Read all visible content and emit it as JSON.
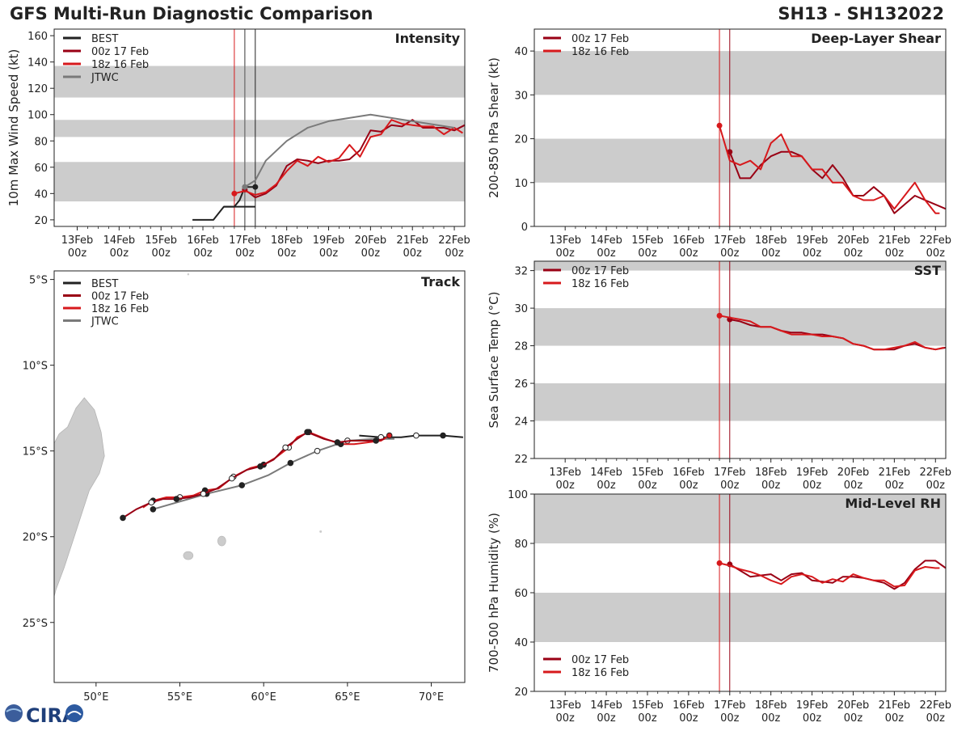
{
  "header": {
    "title": "GFS Multi-Run Diagnostic Comparison",
    "storm_id": "SH13 - SH132022"
  },
  "logo": {
    "text": "CIRA"
  },
  "time_axis": {
    "ticks": [
      [
        "13Feb",
        "00z"
      ],
      [
        "14Feb",
        "00z"
      ],
      [
        "15Feb",
        "00z"
      ],
      [
        "16Feb",
        "00z"
      ],
      [
        "17Feb",
        "00z"
      ],
      [
        "18Feb",
        "00z"
      ],
      [
        "19Feb",
        "00z"
      ],
      [
        "20Feb",
        "00z"
      ],
      [
        "21Feb",
        "00z"
      ],
      [
        "22Feb",
        "00z"
      ]
    ]
  },
  "colors": {
    "best": "#222222",
    "run_00z": "#990014",
    "run_18z": "#d7191c",
    "jtwc": "#7a7a7a",
    "band": "#cccccc",
    "land": "#cccccc"
  },
  "chart_data": [
    {
      "id": "intensity",
      "type": "line",
      "title": "Intensity",
      "xlabel": "",
      "ylabel": "10m Max Wind Speed (kt)",
      "xlim": [
        -0.55,
        9.25
      ],
      "ylim": [
        15,
        165
      ],
      "yticks": [
        20,
        40,
        60,
        80,
        100,
        120,
        140,
        160
      ],
      "bands": [
        [
          34,
          64
        ],
        [
          83,
          96
        ],
        [
          113,
          137
        ]
      ],
      "vlines": [
        {
          "x": 3.75,
          "color": "run_18z",
          "width": 1
        },
        {
          "x": 4.0,
          "color": "jtwc",
          "width": 1.5
        },
        {
          "x": 4.25,
          "color": "best",
          "width": 1
        }
      ],
      "legend": [
        "BEST",
        "00z 17 Feb",
        "18z 16 Feb",
        "JTWC"
      ],
      "series": [
        {
          "name": "BEST",
          "color": "best",
          "x": [
            2.75,
            3.0,
            3.25,
            3.5,
            3.75,
            4.0,
            4.25
          ],
          "y": [
            20,
            20,
            20,
            30,
            30,
            30,
            30
          ],
          "end_marker": true
        },
        {
          "name": "BEST_recent",
          "color": "best",
          "x": [
            3.5,
            3.75,
            3.875,
            4.0,
            4.25
          ],
          "y": [
            30,
            30,
            35,
            45,
            45
          ],
          "hidden_legend": true
        },
        {
          "name": "00z 17 Feb",
          "color": "run_00z",
          "x": [
            4.0,
            4.25,
            4.5,
            4.75,
            5.0,
            5.25,
            5.5,
            5.75,
            6.0,
            6.25,
            6.5,
            6.75,
            7.0,
            7.25,
            7.5,
            7.75,
            8.0,
            8.25,
            8.5,
            8.75,
            9.0,
            9.25
          ],
          "y": [
            43,
            37,
            40,
            46,
            61,
            66,
            65,
            63,
            65,
            65,
            66,
            73,
            88,
            87,
            92,
            91,
            96,
            90,
            90,
            90,
            88,
            92
          ],
          "start_marker": true
        },
        {
          "name": "18z 16 Feb",
          "color": "run_18z",
          "x": [
            3.75,
            4.0,
            4.25,
            4.5,
            4.75,
            5.0,
            5.25,
            5.5,
            5.75,
            6.0,
            6.25,
            6.5,
            6.75,
            7.0,
            7.25,
            7.5,
            7.75,
            8.0,
            8.25,
            8.5,
            8.75,
            9.0,
            9.2
          ],
          "y": [
            40,
            42,
            39,
            41,
            47,
            57,
            65,
            61,
            68,
            64,
            67,
            77,
            68,
            83,
            85,
            96,
            93,
            92,
            91,
            91,
            85,
            90,
            86
          ],
          "start_marker": true
        },
        {
          "name": "JTWC",
          "color": "jtwc",
          "x": [
            4.0,
            4.25,
            4.5,
            5.0,
            5.5,
            6.0,
            7.0,
            8.0,
            9.0
          ],
          "y": [
            45,
            50,
            65,
            80,
            90,
            95,
            100,
            95,
            90
          ]
        }
      ]
    },
    {
      "id": "shear",
      "type": "line",
      "title": "Deep-Layer Shear",
      "xlabel": "",
      "ylabel": "200-850 hPa Shear (kt)",
      "xlim": [
        -0.75,
        9.25
      ],
      "ylim": [
        0,
        45
      ],
      "yticks": [
        0,
        10,
        20,
        30,
        40
      ],
      "bands": [
        [
          10,
          20
        ],
        [
          30,
          40
        ]
      ],
      "vlines": [
        {
          "x": 3.75,
          "color": "run_18z",
          "width": 1
        },
        {
          "x": 4.0,
          "color": "run_00z",
          "width": 1
        }
      ],
      "legend": [
        "00z 17 Feb",
        "18z 16 Feb"
      ],
      "series": [
        {
          "name": "00z 17 Feb",
          "color": "run_00z",
          "x": [
            4.0,
            4.25,
            4.5,
            4.75,
            5.0,
            5.25,
            5.5,
            5.75,
            6.0,
            6.25,
            6.5,
            6.75,
            7.0,
            7.25,
            7.5,
            7.75,
            8.0,
            8.25,
            8.5,
            8.75,
            9.0,
            9.25
          ],
          "y": [
            17,
            11,
            11,
            14,
            16,
            17,
            17,
            16,
            13,
            11,
            14,
            11,
            7,
            7,
            9,
            7,
            3,
            5,
            7,
            6,
            5,
            4
          ],
          "start_marker": true
        },
        {
          "name": "18z 16 Feb",
          "color": "run_18z",
          "x": [
            3.75,
            4.0,
            4.25,
            4.5,
            4.75,
            5.0,
            5.25,
            5.5,
            5.75,
            6.0,
            6.25,
            6.5,
            6.75,
            7.0,
            7.25,
            7.5,
            7.75,
            8.0,
            8.25,
            8.5,
            8.75,
            9.0,
            9.1
          ],
          "y": [
            23,
            15,
            14,
            15,
            13,
            19,
            21,
            16,
            16,
            13,
            13,
            10,
            10,
            7,
            6,
            6,
            7,
            4,
            7,
            10,
            6,
            3,
            3
          ],
          "start_marker": true
        }
      ]
    },
    {
      "id": "sst",
      "type": "line",
      "title": "SST",
      "xlabel": "",
      "ylabel": "Sea Surface Temp (°C)",
      "xlim": [
        -0.75,
        9.25
      ],
      "ylim": [
        22,
        32.5
      ],
      "yticks": [
        22,
        24,
        26,
        28,
        30,
        32
      ],
      "bands": [
        [
          24,
          26
        ],
        [
          28,
          30
        ],
        [
          32,
          33
        ]
      ],
      "vlines": [
        {
          "x": 3.75,
          "color": "run_18z",
          "width": 1
        },
        {
          "x": 4.0,
          "color": "run_00z",
          "width": 1
        }
      ],
      "legend": [
        "00z 17 Feb",
        "18z 16 Feb"
      ],
      "series": [
        {
          "name": "00z 17 Feb",
          "color": "run_00z",
          "x": [
            4.0,
            4.25,
            4.5,
            4.75,
            5.0,
            5.25,
            5.5,
            5.75,
            6.0,
            6.25,
            6.5,
            6.75,
            7.0,
            7.25,
            7.5,
            7.75,
            8.0,
            8.25,
            8.5,
            8.75,
            9.0,
            9.25
          ],
          "y": [
            29.4,
            29.3,
            29.1,
            29.0,
            29.0,
            28.8,
            28.7,
            28.7,
            28.6,
            28.6,
            28.5,
            28.4,
            28.1,
            28.0,
            27.8,
            27.8,
            27.8,
            28.0,
            28.1,
            27.9,
            27.8,
            27.9
          ],
          "start_marker": true
        },
        {
          "name": "18z 16 Feb",
          "color": "run_18z",
          "x": [
            3.75,
            4.0,
            4.25,
            4.5,
            4.75,
            5.0,
            5.25,
            5.5,
            5.75,
            6.0,
            6.25,
            6.5,
            6.75,
            7.0,
            7.25,
            7.5,
            7.75,
            8.0,
            8.25,
            8.5,
            8.75,
            9.0,
            9.2
          ],
          "y": [
            29.6,
            29.5,
            29.4,
            29.3,
            29.0,
            29.0,
            28.8,
            28.6,
            28.6,
            28.6,
            28.5,
            28.5,
            28.4,
            28.1,
            28.0,
            27.8,
            27.8,
            27.9,
            28.0,
            28.2,
            27.9,
            27.8,
            27.9
          ],
          "start_marker": true
        }
      ]
    },
    {
      "id": "rh",
      "type": "line",
      "title": "Mid-Level RH",
      "xlabel": "",
      "ylabel": "700-500 hPa Humidity (%)",
      "xlim": [
        -0.75,
        9.25
      ],
      "ylim": [
        20,
        100
      ],
      "yticks": [
        20,
        40,
        60,
        80,
        100
      ],
      "bands": [
        [
          40,
          60
        ],
        [
          80,
          100
        ]
      ],
      "vlines": [
        {
          "x": 3.75,
          "color": "run_18z",
          "width": 1
        },
        {
          "x": 4.0,
          "color": "run_00z",
          "width": 1
        }
      ],
      "legend": [
        "00z 17 Feb",
        "18z 16 Feb"
      ],
      "legend_position": "bottom-left",
      "series": [
        {
          "name": "00z 17 Feb",
          "color": "run_00z",
          "x": [
            4.0,
            4.25,
            4.5,
            4.75,
            5.0,
            5.25,
            5.5,
            5.75,
            6.0,
            6.25,
            6.5,
            6.75,
            7.0,
            7.25,
            7.5,
            7.75,
            8.0,
            8.25,
            8.5,
            8.75,
            9.0,
            9.25
          ],
          "y": [
            71.5,
            69,
            66.5,
            67,
            67.5,
            65,
            67.5,
            68,
            65,
            64.5,
            64,
            66.5,
            66.5,
            66,
            65,
            64,
            61.5,
            64,
            69.5,
            73,
            73,
            70
          ],
          "start_marker": true
        },
        {
          "name": "18z 16 Feb",
          "color": "run_18z",
          "x": [
            3.75,
            4.0,
            4.25,
            4.5,
            4.75,
            5.0,
            5.25,
            5.5,
            5.75,
            6.0,
            6.25,
            6.5,
            6.75,
            7.0,
            7.25,
            7.5,
            7.75,
            8.0,
            8.25,
            8.5,
            8.75,
            9.0,
            9.1
          ],
          "y": [
            72,
            71,
            69.5,
            68.5,
            67,
            65,
            63.5,
            66.5,
            67.5,
            66.5,
            64,
            65.5,
            64.5,
            67.5,
            66,
            65,
            65,
            62.5,
            63,
            69,
            70.5,
            70,
            70
          ],
          "start_marker": true
        }
      ]
    },
    {
      "id": "track",
      "type": "scatter",
      "title": "Track",
      "xlabel": "",
      "ylabel": "",
      "xlim": [
        47.5,
        72.0
      ],
      "ylim": [
        -28.5,
        -4.5
      ],
      "xticks": [
        50,
        55,
        60,
        65,
        70
      ],
      "xtick_labels": [
        "50°E",
        "55°E",
        "60°E",
        "65°E",
        "70°E"
      ],
      "yticks": [
        -5,
        -10,
        -15,
        -20,
        -25
      ],
      "ytick_labels": [
        "5°S",
        "10°S",
        "15°S",
        "20°S",
        "25°S"
      ],
      "legend": [
        "BEST",
        "00z 17 Feb",
        "18z 16 Feb",
        "JTWC"
      ],
      "series": [
        {
          "name": "BEST",
          "color": "best",
          "lon": [
            65.7,
            67.0,
            68.2,
            69.1,
            69.9,
            70.7,
            71.9
          ],
          "lat": [
            -14.1,
            -14.2,
            -14.2,
            -14.1,
            -14.1,
            -14.1,
            -14.2
          ],
          "markers": [
            [
              67.0,
              "open"
            ],
            [
              69.1,
              "open"
            ],
            [
              70.7,
              "filled"
            ]
          ]
        },
        {
          "name": "00z 17 Feb",
          "color": "run_00z",
          "lon": [
            67.2,
            66.7,
            66.0,
            65.2,
            64.4,
            63.6,
            62.6,
            62.0,
            61.3,
            60.6,
            59.8,
            59.0,
            58.1,
            57.2,
            56.4,
            55.6,
            54.8,
            54.0,
            53.3,
            52.4,
            51.6
          ],
          "lat": [
            -14.3,
            -14.4,
            -14.4,
            -14.4,
            -14.5,
            -14.3,
            -13.9,
            -14.3,
            -14.8,
            -15.5,
            -15.9,
            -16.1,
            -16.6,
            -17.2,
            -17.5,
            -17.7,
            -17.8,
            -17.8,
            -18.0,
            -18.4,
            -18.9
          ],
          "markers": [
            [
              66.7,
              "filled"
            ],
            [
              64.4,
              "filled"
            ],
            [
              62.6,
              "filled"
            ],
            [
              61.3,
              "open"
            ],
            [
              59.8,
              "filled"
            ],
            [
              58.1,
              "open"
            ],
            [
              56.4,
              "open"
            ],
            [
              54.8,
              "filled"
            ],
            [
              53.3,
              "open"
            ],
            [
              51.6,
              "filled"
            ]
          ]
        },
        {
          "name": "18z 16 Feb",
          "color": "run_18z",
          "lon": [
            67.5,
            67.0,
            66.2,
            65.4,
            64.6,
            63.7,
            62.7,
            62.0,
            61.5,
            60.7,
            60.0,
            59.2,
            58.2,
            57.3,
            56.5,
            55.8,
            55.0,
            54.2,
            53.4,
            52.8
          ],
          "lat": [
            -14.1,
            -14.4,
            -14.5,
            -14.6,
            -14.6,
            -14.3,
            -13.9,
            -14.2,
            -14.8,
            -15.4,
            -15.8,
            -16.0,
            -16.5,
            -17.2,
            -17.3,
            -17.6,
            -17.7,
            -17.7,
            -17.9,
            -18.3
          ],
          "markers": [
            [
              67.5,
              "filled"
            ],
            [
              64.6,
              "filled"
            ],
            [
              62.7,
              "filled"
            ],
            [
              61.5,
              "open"
            ],
            [
              60.0,
              "filled"
            ],
            [
              58.2,
              "open"
            ],
            [
              56.5,
              "filled"
            ],
            [
              55.0,
              "open"
            ],
            [
              53.4,
              "filled"
            ]
          ]
        },
        {
          "name": "JTWC",
          "color": "jtwc",
          "lon": [
            67.8,
            66.6,
            65.0,
            63.2,
            61.6,
            60.3,
            58.7,
            56.6,
            53.4
          ],
          "lat": [
            -14.3,
            -14.3,
            -14.4,
            -15.0,
            -15.7,
            -16.4,
            -17.0,
            -17.5,
            -18.4
          ],
          "markers": [
            [
              65.0,
              "open"
            ],
            [
              63.2,
              "open"
            ],
            [
              61.6,
              "filled"
            ],
            [
              58.7,
              "filled"
            ],
            [
              56.6,
              "filled"
            ],
            [
              53.4,
              "filled"
            ]
          ]
        }
      ]
    }
  ]
}
